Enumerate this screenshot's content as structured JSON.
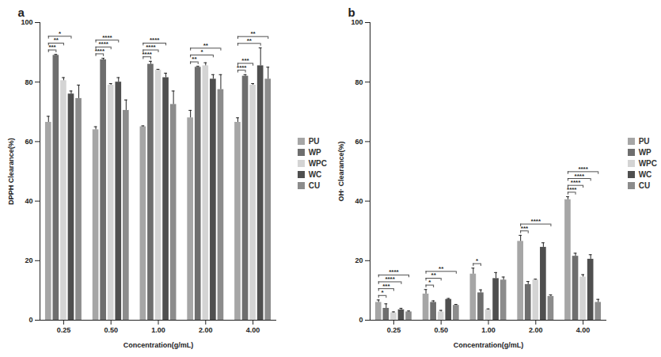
{
  "chart_data": [
    {
      "type": "bar",
      "title": "a",
      "x_label": "Concentration(g/mL)",
      "y_label": "DPPH Clearance(%)",
      "categories": [
        "0.25",
        "0.50",
        "1.00",
        "2.00",
        "4.00"
      ],
      "series": [
        {
          "name": "PU",
          "color": "#a6a6a6",
          "values": [
            66.5,
            64,
            65,
            68,
            66.5
          ],
          "errors": [
            2,
            1,
            0.3,
            2.5,
            1.5
          ]
        },
        {
          "name": "WP",
          "color": "#6e6e6e",
          "values": [
            89,
            87.5,
            86,
            85,
            82
          ],
          "errors": [
            0.3,
            0.5,
            1,
            0.3,
            0.5
          ]
        },
        {
          "name": "WPC",
          "color": "#d4d4d4",
          "values": [
            80.5,
            79,
            84,
            85.5,
            79
          ],
          "errors": [
            1,
            0.5,
            0.3,
            1,
            0.5
          ]
        },
        {
          "name": "WC",
          "color": "#4f4f4f",
          "values": [
            76,
            80,
            81.5,
            81,
            85.5
          ],
          "errors": [
            1,
            1.5,
            1.5,
            1.5,
            6
          ]
        },
        {
          "name": "CU",
          "color": "#8c8c8c",
          "values": [
            74.5,
            70.5,
            72.5,
            77.5,
            81
          ],
          "errors": [
            4.5,
            3.5,
            4.5,
            5,
            4
          ]
        }
      ],
      "ylim": [
        0,
        100
      ],
      "yticks": [
        0,
        20,
        40,
        60,
        80,
        100
      ],
      "grid": false,
      "legend": "right",
      "annotations": [
        {
          "category": "0.25",
          "from": "PU",
          "to": "WP",
          "label": "***"
        },
        {
          "category": "0.25",
          "from": "PU",
          "to": "WPC",
          "label": "**"
        },
        {
          "category": "0.25",
          "from": "PU",
          "to": "WC",
          "label": "*"
        },
        {
          "category": "0.50",
          "from": "PU",
          "to": "WP",
          "label": "****"
        },
        {
          "category": "0.50",
          "from": "PU",
          "to": "WPC",
          "label": "****"
        },
        {
          "category": "0.50",
          "from": "PU",
          "to": "WC",
          "label": "****"
        },
        {
          "category": "1.00",
          "from": "PU",
          "to": "WP",
          "label": "****"
        },
        {
          "category": "1.00",
          "from": "PU",
          "to": "WPC",
          "label": "****"
        },
        {
          "category": "1.00",
          "from": "PU",
          "to": "WC",
          "label": "****"
        },
        {
          "category": "2.00",
          "from": "PU",
          "to": "WP",
          "label": "**"
        },
        {
          "category": "2.00",
          "from": "PU",
          "to": "WC",
          "label": "*"
        },
        {
          "category": "2.00",
          "from": "PU",
          "to": "CU",
          "label": "**"
        },
        {
          "category": "4.00",
          "from": "PU",
          "to": "WP",
          "label": "****"
        },
        {
          "category": "4.00",
          "from": "PU",
          "to": "WPC",
          "label": "***"
        },
        {
          "category": "4.00",
          "from": "PU",
          "to": "WC",
          "label": "**"
        },
        {
          "category": "4.00",
          "from": "PU",
          "to": "CU",
          "label": "**"
        }
      ]
    },
    {
      "type": "bar",
      "title": "b",
      "x_label": "Concentration(g/mL)",
      "y_label": "OH· Clearance(%)",
      "categories": [
        "0.25",
        "0.50",
        "1.00",
        "2.00",
        "4.00"
      ],
      "series": [
        {
          "name": "PU",
          "color": "#a6a6a6",
          "values": [
            6,
            8.8,
            15.5,
            26.5,
            40.5
          ],
          "errors": [
            0.8,
            1.5,
            2,
            2,
            1
          ]
        },
        {
          "name": "WP",
          "color": "#6e6e6e",
          "values": [
            4,
            6,
            9.2,
            12,
            21.5
          ],
          "errors": [
            1.5,
            0.5,
            1,
            1,
            1
          ]
        },
        {
          "name": "WPC",
          "color": "#d4d4d4",
          "values": [
            2.5,
            2.8,
            3.5,
            13.5,
            14.5
          ],
          "errors": [
            0.3,
            0.5,
            0.3,
            0.3,
            0.8
          ]
        },
        {
          "name": "WC",
          "color": "#4f4f4f",
          "values": [
            3.5,
            7,
            14,
            24.5,
            20.5
          ],
          "errors": [
            0.5,
            0.3,
            2,
            1.5,
            1.5
          ]
        },
        {
          "name": "CU",
          "color": "#8c8c8c",
          "values": [
            2.8,
            5,
            13.5,
            8,
            6
          ],
          "errors": [
            0.3,
            0.3,
            1,
            0.5,
            1
          ]
        }
      ],
      "ylim": [
        0,
        100
      ],
      "yticks": [
        0,
        20,
        40,
        60,
        80,
        100
      ],
      "grid": false,
      "legend": "right",
      "annotations": [
        {
          "category": "0.25",
          "from": "PU",
          "to": "WP",
          "label": "*"
        },
        {
          "category": "0.25",
          "from": "PU",
          "to": "WPC",
          "label": "***"
        },
        {
          "category": "0.25",
          "from": "PU",
          "to": "WC",
          "label": "****"
        },
        {
          "category": "0.25",
          "from": "PU",
          "to": "CU",
          "label": "****"
        },
        {
          "category": "0.50",
          "from": "PU",
          "to": "WP",
          "label": "*"
        },
        {
          "category": "0.50",
          "from": "PU",
          "to": "WPC",
          "label": "**"
        },
        {
          "category": "0.50",
          "from": "PU",
          "to": "CU",
          "label": "**"
        },
        {
          "category": "1.00",
          "from": "PU",
          "to": "WP",
          "label": "*"
        },
        {
          "category": "2.00",
          "from": "PU",
          "to": "WP",
          "label": "***"
        },
        {
          "category": "2.00",
          "from": "PU",
          "to": "CU",
          "label": "****"
        },
        {
          "category": "4.00",
          "from": "PU",
          "to": "WP",
          "label": "****"
        },
        {
          "category": "4.00",
          "from": "PU",
          "to": "WPC",
          "label": "****"
        },
        {
          "category": "4.00",
          "from": "PU",
          "to": "WC",
          "label": "****"
        },
        {
          "category": "4.00",
          "from": "PU",
          "to": "CU",
          "label": "****"
        }
      ]
    }
  ]
}
